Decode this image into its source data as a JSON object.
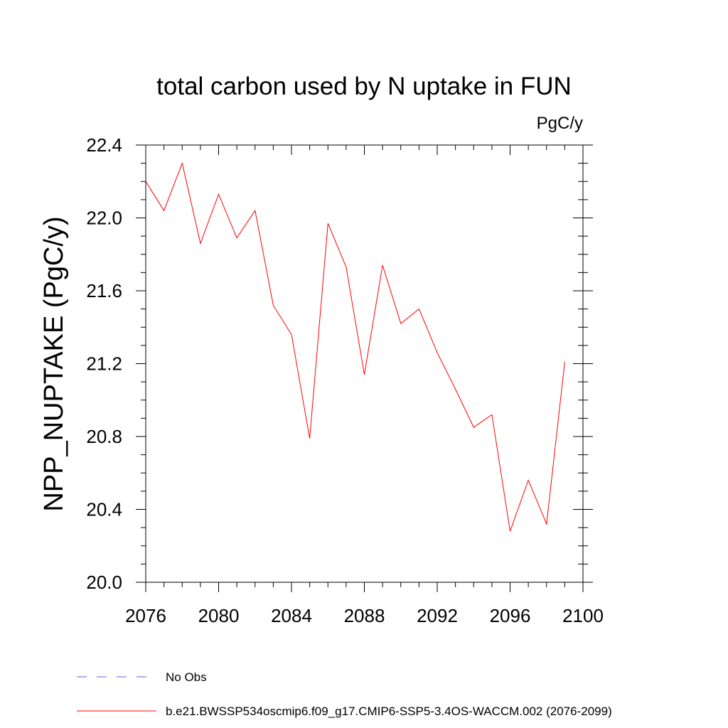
{
  "chart_data": {
    "type": "line",
    "title": "total carbon used by N uptake in FUN",
    "units_label": "PgC/y",
    "ylabel": "NPP_NUPTAKE  (PgC/y)",
    "xlabel": "",
    "xlim": [
      2076,
      2100
    ],
    "ylim": [
      20.0,
      22.4
    ],
    "x_ticks": [
      "2076",
      "2080",
      "2084",
      "2088",
      "2092",
      "2096",
      "2100"
    ],
    "y_ticks": [
      "20.0",
      "20.4",
      "20.8",
      "21.2",
      "21.6",
      "22.0",
      "22.4"
    ],
    "series": [
      {
        "name": "b.e21.BWSSP534oscmip6.f09_g17.CMIP6-SSP5-3.4OS-WACCM.002 (2076-2099)",
        "color": "#ff0000",
        "x": [
          2076,
          2077,
          2078,
          2079,
          2080,
          2081,
          2082,
          2083,
          2084,
          2085,
          2086,
          2087,
          2088,
          2089,
          2090,
          2091,
          2092,
          2093,
          2094,
          2095,
          2096,
          2097,
          2098,
          2099
        ],
        "values": [
          22.2,
          22.04,
          22.3,
          21.86,
          22.13,
          21.89,
          22.04,
          21.52,
          21.36,
          20.79,
          21.97,
          21.73,
          21.14,
          21.74,
          21.42,
          21.5,
          21.26,
          21.06,
          20.85,
          20.92,
          20.28,
          20.56,
          20.32,
          21.21
        ]
      }
    ],
    "legend": [
      {
        "label": "No Obs",
        "color": "#6a5acd",
        "style": "dashed"
      },
      {
        "label": "b.e21.BWSSP534oscmip6.f09_g17.CMIP6-SSP5-3.4OS-WACCM.002 (2076-2099)",
        "color": "#ff0000",
        "style": "solid"
      }
    ],
    "legend_position": "bottom-left",
    "grid": false
  }
}
